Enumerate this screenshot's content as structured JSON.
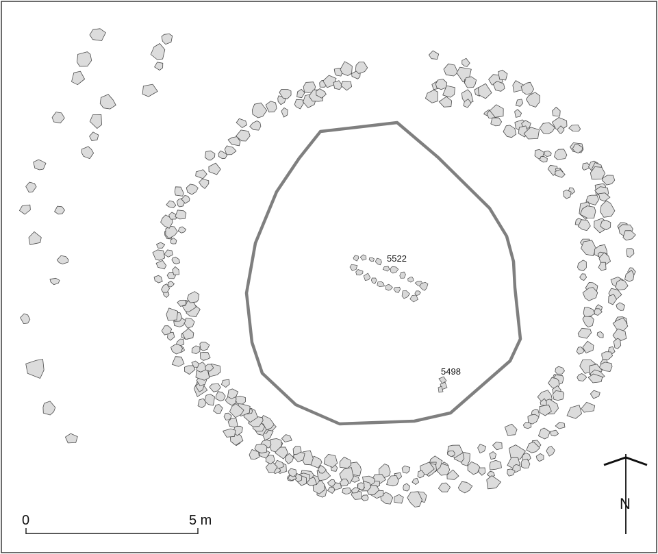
{
  "features": [
    {
      "id": "feature-5522",
      "label": "5522"
    },
    {
      "id": "feature-5498",
      "label": "5498"
    }
  ],
  "scale_bar": {
    "start_label": "0",
    "end_label": "5 m"
  },
  "north_arrow": {
    "label": "N"
  },
  "colors": {
    "stone_fill": "#dcdcdc",
    "stone_stroke": "#4a4a4a",
    "boundary_line": "#7f7f7f",
    "background": "#ffffff"
  }
}
